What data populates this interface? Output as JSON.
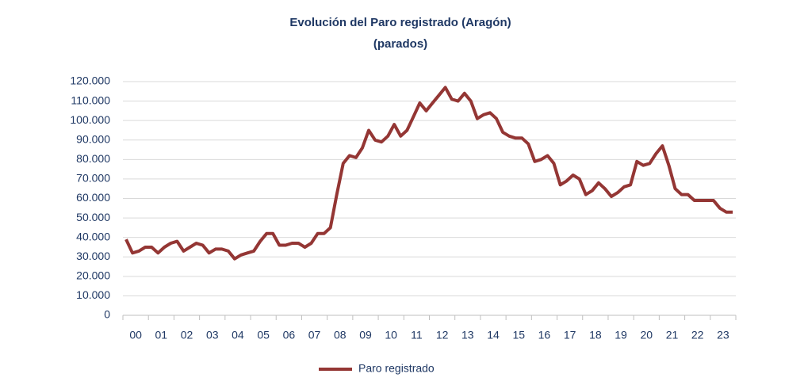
{
  "chart_data": {
    "type": "line",
    "title": "Evolución del Paro registrado (Aragón)",
    "subtitle": "(parados)",
    "categories": [
      "00",
      null,
      null,
      null,
      "01",
      null,
      null,
      null,
      "02",
      null,
      null,
      null,
      "03",
      null,
      null,
      null,
      "04",
      null,
      null,
      null,
      "05",
      null,
      null,
      null,
      "06",
      null,
      null,
      null,
      "07",
      null,
      null,
      null,
      "08",
      null,
      null,
      null,
      "09",
      null,
      null,
      null,
      "10",
      null,
      null,
      null,
      "11",
      null,
      null,
      null,
      "12",
      null,
      null,
      null,
      "13",
      null,
      null,
      null,
      "14",
      null,
      null,
      null,
      "15",
      null,
      null,
      null,
      "16",
      null,
      null,
      null,
      "17",
      null,
      null,
      null,
      "18",
      null,
      null,
      null,
      "19",
      null,
      null,
      null,
      "20",
      null,
      null,
      null,
      "21",
      null,
      null,
      null,
      "22",
      null,
      null,
      null,
      "23",
      null,
      null,
      null
    ],
    "series": [
      {
        "name": "Paro registrado",
        "color": "#943634",
        "values": [
          39000,
          32000,
          33000,
          35000,
          35000,
          32000,
          35000,
          37000,
          38000,
          33000,
          35000,
          37000,
          36000,
          32000,
          34000,
          34000,
          33000,
          29000,
          31000,
          32000,
          33000,
          38000,
          42000,
          42000,
          36000,
          36000,
          37000,
          37000,
          35000,
          37000,
          42000,
          42000,
          45000,
          62000,
          78000,
          82000,
          81000,
          86000,
          95000,
          90000,
          89000,
          92000,
          98000,
          92000,
          95000,
          102000,
          109000,
          105000,
          109000,
          113000,
          117000,
          111000,
          110000,
          114000,
          110000,
          101000,
          103000,
          104000,
          101000,
          94000,
          92000,
          91000,
          91000,
          88000,
          79000,
          80000,
          82000,
          78000,
          67000,
          69000,
          72000,
          70000,
          62000,
          64000,
          68000,
          65000,
          61000,
          63000,
          66000,
          67000,
          79000,
          77000,
          78000,
          83000,
          87000,
          77000,
          65000,
          62000,
          62000,
          59000,
          59000,
          59000,
          59000,
          55000,
          53000,
          53000
        ]
      }
    ],
    "ylim": [
      0,
      120000
    ],
    "yticks": [
      0,
      {
        "value": 10000,
        "label": "10.000"
      },
      {
        "value": 20000,
        "label": "20.000"
      },
      {
        "value": 30000,
        "label": "30.000"
      },
      {
        "value": 40000,
        "label": "40.000"
      },
      {
        "value": 50000,
        "label": "50.000"
      },
      {
        "value": 60000,
        "label": "60.000"
      },
      {
        "value": 70000,
        "label": "70.000"
      },
      {
        "value": 80000,
        "label": "80.000"
      },
      {
        "value": 90000,
        "label": "90.000"
      },
      {
        "value": 100000,
        "label": "100.000"
      },
      {
        "value": 110000,
        "label": "110.000"
      },
      {
        "value": 120000,
        "label": "120.000"
      }
    ],
    "grid": true,
    "legend": "bottom"
  }
}
